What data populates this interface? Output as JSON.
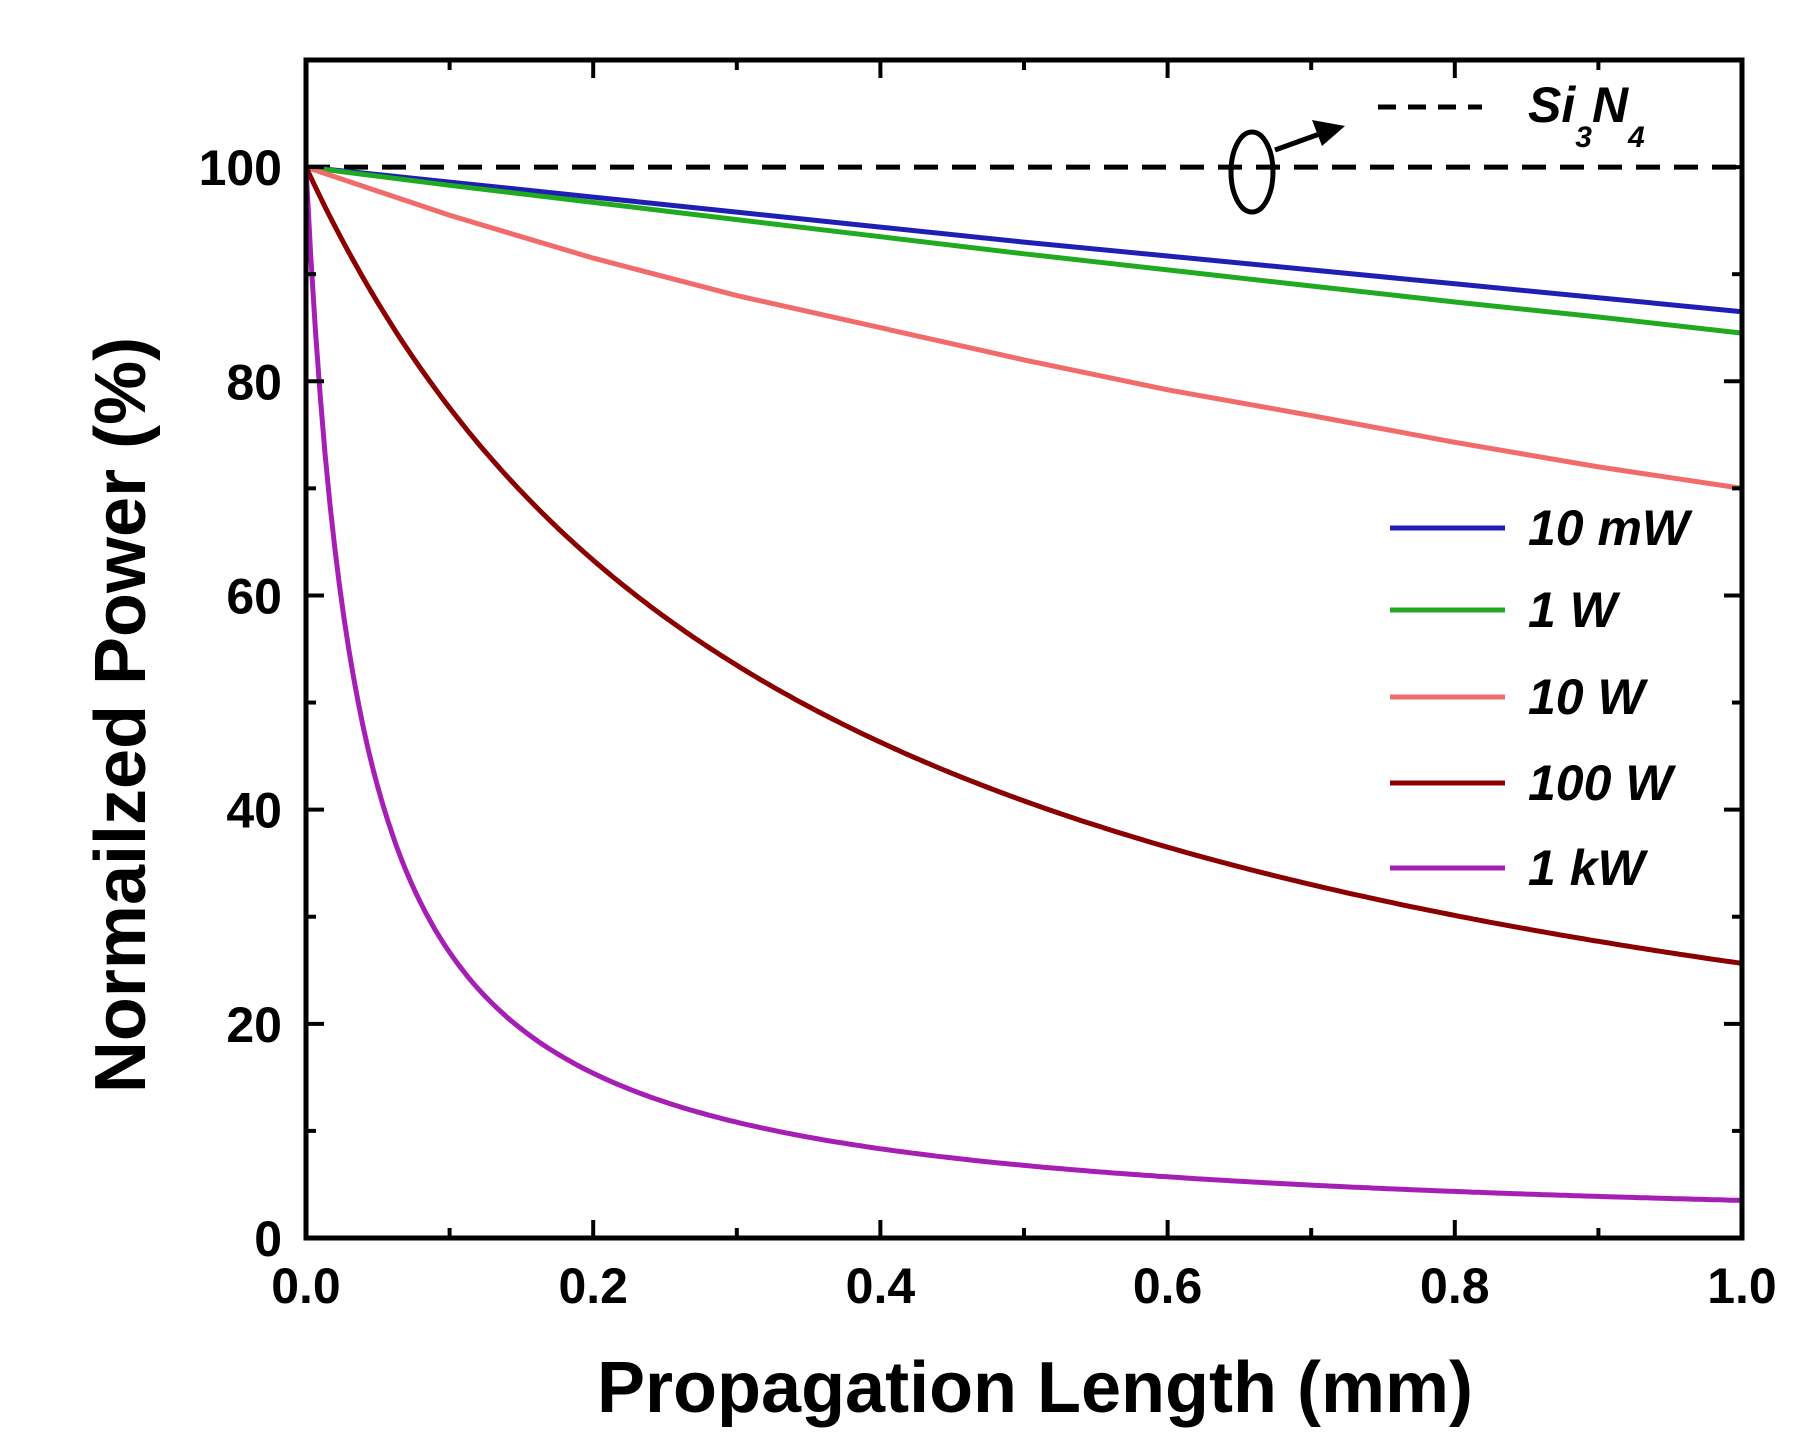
{
  "chart_data": {
    "type": "line",
    "title": "",
    "xlabel": "Propagation Length (mm)",
    "ylabel": "Normailzed Power (%)",
    "xlim": [
      0.0,
      1.0
    ],
    "ylim": [
      0,
      110
    ],
    "xticks": [
      0.0,
      0.2,
      0.4,
      0.6,
      0.8,
      1.0
    ],
    "xtick_labels": [
      "0.0",
      "0.2",
      "0.4",
      "0.6",
      "0.8",
      "1.0"
    ],
    "yticks": [
      0,
      20,
      40,
      60,
      80,
      100
    ],
    "ytick_labels": [
      "0",
      "20",
      "40",
      "60",
      "80",
      "100"
    ],
    "grid": false,
    "legend_position": "right",
    "series": [
      {
        "name": "Si3N4",
        "label_main": "Si",
        "label_sub1": "3",
        "label_mid": "N",
        "label_sub2": "4",
        "color": "#000000",
        "dashed": true,
        "x": [
          0.0,
          0.2,
          0.4,
          0.6,
          0.8,
          1.0
        ],
        "values": [
          100,
          100,
          100,
          100,
          100,
          100
        ]
      },
      {
        "name": "10 mW",
        "color": "#1f1fb4",
        "x": [
          0.0,
          0.1,
          0.2,
          0.3,
          0.4,
          0.5,
          0.6,
          0.7,
          0.8,
          0.9,
          1.0
        ],
        "values": [
          100,
          98.6,
          97.2,
          95.8,
          94.4,
          93.0,
          91.7,
          90.4,
          89.1,
          87.8,
          86.5
        ]
      },
      {
        "name": "1 W",
        "color": "#1faa1f",
        "x": [
          0.0,
          0.1,
          0.2,
          0.3,
          0.4,
          0.5,
          0.6,
          0.7,
          0.8,
          0.9,
          1.0
        ],
        "values": [
          100,
          98.3,
          96.7,
          95.1,
          93.5,
          91.9,
          90.4,
          88.9,
          87.4,
          86.0,
          84.5
        ]
      },
      {
        "name": "10 W",
        "color": "#f26b6b",
        "x": [
          0.0,
          0.1,
          0.2,
          0.3,
          0.4,
          0.5,
          0.6,
          0.7,
          0.8,
          0.9,
          1.0
        ],
        "values": [
          100,
          95.5,
          91.5,
          88.0,
          85.0,
          82.0,
          79.2,
          76.8,
          74.3,
          72.0,
          70.0
        ]
      },
      {
        "name": "100 W",
        "color": "#8b0000",
        "x": [
          0.0,
          0.05,
          0.1,
          0.15,
          0.2,
          0.3,
          0.4,
          0.5,
          0.6,
          0.7,
          0.8,
          0.9,
          1.0
        ],
        "values": [
          100,
          89.5,
          78.7,
          71.0,
          65.0,
          55.5,
          47.5,
          41.5,
          36.5,
          32.5,
          29.5,
          27.5,
          25.5
        ],
        "model": {
          "form": "1/(1+k*x)",
          "k": 2.9,
          "scale": 100
        }
      },
      {
        "name": "1 kW",
        "color": "#a51fb4",
        "x": [
          0.0,
          0.02,
          0.05,
          0.1,
          0.15,
          0.2,
          0.3,
          0.4,
          0.6,
          0.8,
          1.0
        ],
        "values": [
          100,
          60,
          40,
          26,
          20,
          16,
          11,
          8.5,
          5.8,
          4.5,
          3.5
        ],
        "model": {
          "form": "1/(1+k*x)",
          "k": 27.5,
          "scale": 100
        }
      }
    ],
    "legend_entries": [
      "10 mW",
      "1 W",
      "10 W",
      "100 W",
      "1 kW"
    ]
  }
}
